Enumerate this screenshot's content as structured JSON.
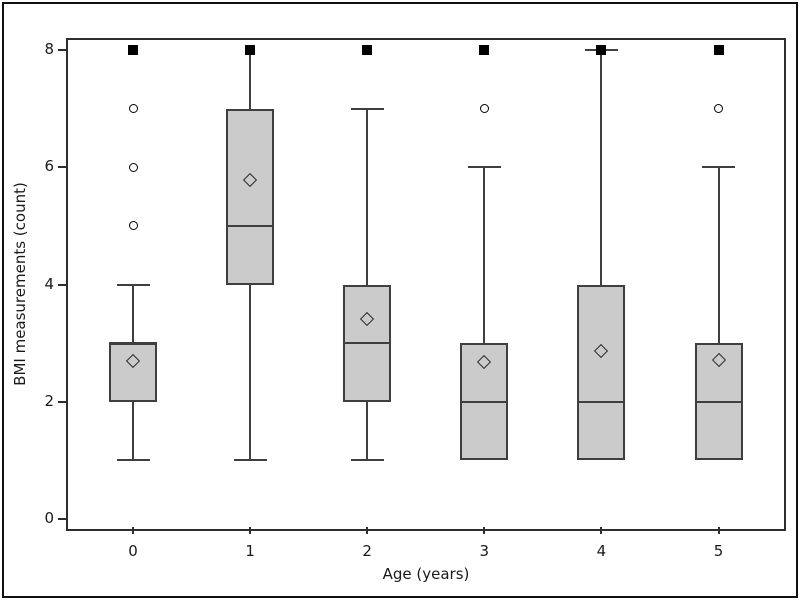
{
  "chart_data": {
    "type": "boxplot",
    "title": "",
    "xlabel": "Age (years)",
    "ylabel": "BMI measurements (count)",
    "categories": [
      "0",
      "1",
      "2",
      "3",
      "4",
      "5"
    ],
    "y_ticks": [
      "0",
      "2",
      "4",
      "6",
      "8"
    ],
    "ylim": [
      0,
      8
    ],
    "grid": false,
    "legend": false,
    "groups": [
      {
        "category": "0",
        "whisker_low": 1,
        "q1": 2,
        "median": 3,
        "q3": 3,
        "whisker_high": 4,
        "mean": 2.7,
        "outliers_circle": [
          5,
          6,
          7
        ],
        "extreme_square": 8,
        "cap_low": true,
        "cap_high": true
      },
      {
        "category": "1",
        "whisker_low": 1,
        "q1": 4,
        "median": 5,
        "q3": 7,
        "whisker_high": 8,
        "mean": 5.78,
        "outliers_circle": [],
        "extreme_square": 8,
        "cap_low": true,
        "cap_high": false
      },
      {
        "category": "2",
        "whisker_low": 1,
        "q1": 2,
        "median": 3,
        "q3": 4,
        "whisker_high": 7,
        "mean": 3.42,
        "outliers_circle": [],
        "extreme_square": 8,
        "cap_low": true,
        "cap_high": true
      },
      {
        "category": "3",
        "whisker_low": 1,
        "q1": 1,
        "median": 2,
        "q3": 3,
        "whisker_high": 6,
        "mean": 2.67,
        "outliers_circle": [
          7
        ],
        "extreme_square": 8,
        "cap_low": false,
        "cap_high": true
      },
      {
        "category": "4",
        "whisker_low": 1,
        "q1": 1,
        "median": 2,
        "q3": 4,
        "whisker_high": 8,
        "mean": 2.87,
        "outliers_circle": [],
        "extreme_square": 8,
        "cap_low": false,
        "cap_high": true
      },
      {
        "category": "5",
        "whisker_low": 1,
        "q1": 1,
        "median": 2,
        "q3": 3,
        "whisker_high": 6,
        "mean": 2.72,
        "outliers_circle": [
          7
        ],
        "extreme_square": 8,
        "cap_low": false,
        "cap_high": true
      }
    ],
    "marker_semantics": {
      "open_diamond": "group mean",
      "open_circle": "outlier value",
      "filled_square": "extreme value at 8"
    },
    "colors": {
      "box_fill": "#cbcbcb",
      "box_border": "#3f3f3f",
      "whisker": "#3f3f3f",
      "median": "#3f3f3f",
      "mean_marker_stroke": "#2b2b2b",
      "outlier_stroke": "#000000",
      "extreme_fill": "#000000",
      "axis": "#2e2e2e",
      "outer_border": "#101010",
      "text": "#1a1a1a",
      "background": "#ffffff"
    }
  }
}
